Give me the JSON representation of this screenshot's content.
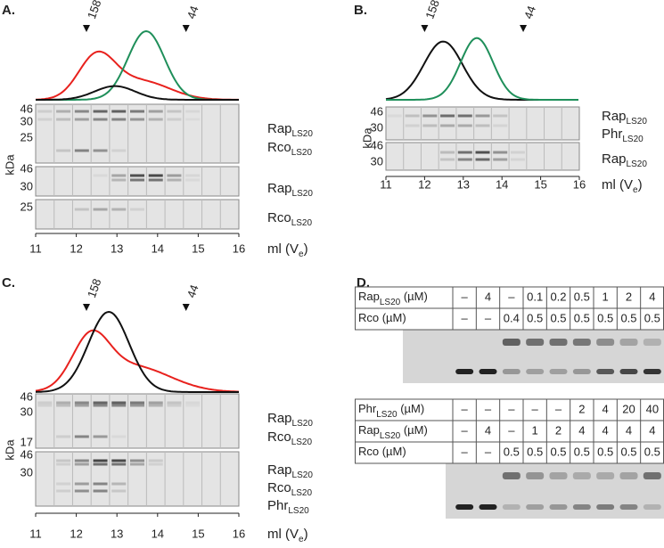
{
  "panels": [
    {
      "label": "A.",
      "markers": [
        158,
        44
      ],
      "axis_ticks": [
        11,
        12,
        13,
        14,
        15,
        16
      ],
      "axis_label": {
        "main": "ml (V",
        "sub": "e",
        "tail": ")"
      },
      "y_label": "kDa",
      "gels": [
        {
          "ticks": [
            46,
            30,
            25
          ],
          "labels": [
            {
              "main": "Rap",
              "sub": "LS20",
              "color": "#e8211d"
            },
            {
              "main": "Rco",
              "sub": "LS20",
              "color": "#e8211d"
            }
          ]
        },
        {
          "ticks": [
            46,
            30
          ],
          "labels": [
            {
              "main": "Rap",
              "sub": "LS20",
              "color": "#1f8f5a"
            }
          ]
        },
        {
          "ticks": [
            25
          ],
          "labels": [
            {
              "main": "Rco",
              "sub": "LS20",
              "color": "#222222"
            }
          ]
        }
      ]
    },
    {
      "label": "B.",
      "markers": [
        158,
        44
      ],
      "axis_ticks": [
        11,
        12,
        13,
        14,
        15,
        16
      ],
      "axis_label": {
        "main": "ml (V",
        "sub": "e",
        "tail": ")"
      },
      "y_label": "kDa",
      "gels": [
        {
          "ticks": [
            46,
            30
          ],
          "labels": [
            {
              "main": "Rap",
              "sub": "LS20",
              "color": "#222222"
            },
            {
              "main": "Phr",
              "sub": "LS20",
              "color": "#222222"
            }
          ]
        },
        {
          "ticks": [
            46,
            30
          ],
          "labels": [
            {
              "main": "Rap",
              "sub": "LS20",
              "color": "#1f8f5a"
            }
          ]
        }
      ]
    },
    {
      "label": "C.",
      "markers": [
        158,
        44
      ],
      "axis_ticks": [
        11,
        12,
        13,
        14,
        15,
        16
      ],
      "axis_label": {
        "main": "ml (V",
        "sub": "e",
        "tail": ")"
      },
      "y_label": "kDa",
      "gels": [
        {
          "ticks": [
            46,
            30,
            17
          ],
          "labels": [
            {
              "main": "Rap",
              "sub": "LS20",
              "color": "#e8211d"
            },
            {
              "main": "Rco",
              "sub": "LS20",
              "color": "#e8211d"
            }
          ]
        },
        {
          "ticks": [
            46,
            30
          ],
          "labels": [
            {
              "main": "Rap",
              "sub": "LS20",
              "color": "#222222"
            },
            {
              "main": "Rco",
              "sub": "LS20",
              "color": "#222222"
            },
            {
              "main": "Phr",
              "sub": "LS20",
              "color": "#222222"
            }
          ]
        }
      ]
    },
    {
      "label": "D.",
      "tables": [
        {
          "rows": [
            {
              "name": {
                "main": "Rap",
                "sub": "LS20",
                "tail": " (µM)"
              },
              "cells": [
                "–",
                4,
                "–",
                0.1,
                0.2,
                0.5,
                1,
                2,
                4
              ]
            },
            {
              "name": {
                "main": "Rco (µM)"
              },
              "cells": [
                "–",
                "–",
                0.4,
                0.5,
                0.5,
                0.5,
                0.5,
                0.5,
                0.5
              ]
            }
          ]
        },
        {
          "rows": [
            {
              "name": {
                "main": "Phr",
                "sub": "LS20",
                "tail": " (µM)"
              },
              "cells": [
                "–",
                "–",
                "–",
                "–",
                "–",
                2,
                4,
                20,
                40
              ]
            },
            {
              "name": {
                "main": "Rap",
                "sub": "LS20",
                "tail": " (µM)"
              },
              "cells": [
                "–",
                4,
                "–",
                1,
                2,
                4,
                4,
                4,
                4
              ]
            },
            {
              "name": {
                "main": "Rco (µM)"
              },
              "cells": [
                "–",
                "–",
                0.5,
                0.5,
                0.5,
                0.5,
                0.5,
                0.5,
                0.5
              ]
            }
          ]
        }
      ]
    }
  ]
}
